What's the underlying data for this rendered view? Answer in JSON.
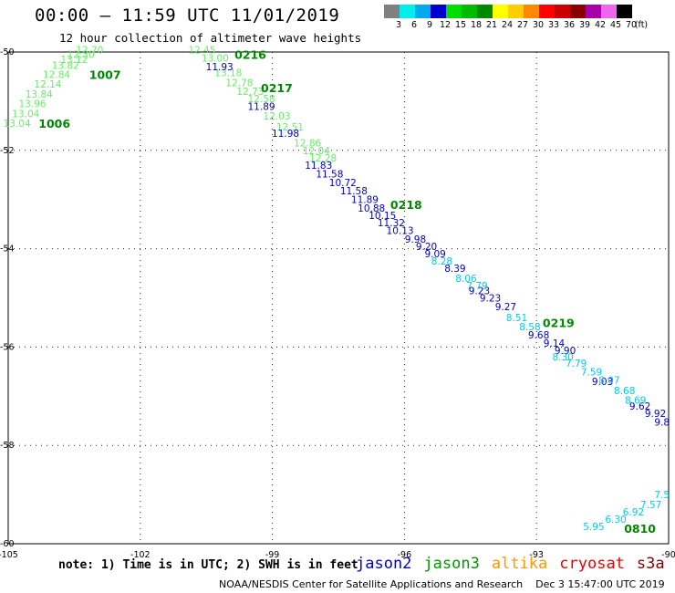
{
  "title": "00:00 – 11:59 UTC 11/01/2019",
  "subtitle": "12 hour collection of altimeter wave heights",
  "legend": {
    "labels": [
      "3",
      "6",
      "9",
      "12",
      "15",
      "18",
      "21",
      "24",
      "27",
      "30",
      "33",
      "36",
      "39",
      "42",
      "45",
      "70"
    ],
    "colors": [
      "#808080",
      "#00eeee",
      "#00aaee",
      "#0000cc",
      "#00dd00",
      "#00bb00",
      "#008800",
      "#ffff00",
      "#ffcc00",
      "#ff8800",
      "#ff0000",
      "#cc0000",
      "#880000",
      "#aa00aa",
      "#ee66ee",
      "#000000"
    ],
    "unit": "(ft)"
  },
  "colors": {
    "jason2": "#0000cc",
    "jason3": "#009900",
    "altika": "#ff9900",
    "cryosat": "#ee0000",
    "s3a": "#880000",
    "light_green": "#66ee66",
    "cyan": "#00ccee",
    "pass_label": "#008800",
    "grid": "#222222"
  },
  "map": {
    "x_ticks": [
      "-105",
      "-102",
      "-99",
      "-96",
      "-93",
      "-90"
    ],
    "y_ticks": [
      "-50",
      "-52",
      "-54",
      "-56",
      "-58",
      "-60"
    ],
    "pass_labels": [
      {
        "text": "1006",
        "lon": -103.95,
        "lat": -51.45
      },
      {
        "text": "1007",
        "lon": -102.8,
        "lat": -50.45
      },
      {
        "text": "0216",
        "lon": -99.5,
        "lat": -50.05
      },
      {
        "text": "0217",
        "lon": -98.9,
        "lat": -50.72
      },
      {
        "text": "0218",
        "lon": -95.96,
        "lat": -53.1
      },
      {
        "text": "0219",
        "lon": -92.5,
        "lat": -55.5
      },
      {
        "text": "0810",
        "lon": -90.65,
        "lat": -59.68
      }
    ],
    "tracks": [
      {
        "satellite": "jason3",
        "color_key": "light_green",
        "points": [
          {
            "v": "13.04",
            "lon": -104.8,
            "lat": -51.45
          },
          {
            "v": "13.04",
            "lon": -104.6,
            "lat": -51.25
          },
          {
            "v": "13.96",
            "lon": -104.45,
            "lat": -51.05
          },
          {
            "v": "13.84",
            "lon": -104.3,
            "lat": -50.85
          },
          {
            "v": "12.14",
            "lon": -104.1,
            "lat": -50.65
          },
          {
            "v": "12.84",
            "lon": -103.9,
            "lat": -50.45
          },
          {
            "v": "13.82",
            "lon": -103.7,
            "lat": -50.27
          },
          {
            "v": "13.12",
            "lon": -103.5,
            "lat": -50.15
          },
          {
            "v": "12.30",
            "lon": -103.35,
            "lat": -50.05
          },
          {
            "v": "12.70",
            "lon": -103.15,
            "lat": -49.95
          }
        ]
      },
      {
        "satellite": "jason3",
        "color_key": "light_green",
        "points": [
          {
            "v": "12.45",
            "lon": -100.6,
            "lat": -49.95
          },
          {
            "v": "13.00",
            "lon": -100.3,
            "lat": -50.12
          },
          {
            "v": "13.18",
            "lon": -100.0,
            "lat": -50.42
          },
          {
            "v": "12.78",
            "lon": -99.75,
            "lat": -50.62
          },
          {
            "v": "12.73",
            "lon": -99.5,
            "lat": -50.8
          },
          {
            "v": "12.58",
            "lon": -99.25,
            "lat": -50.95
          },
          {
            "v": "12.03",
            "lon": -98.9,
            "lat": -51.3
          },
          {
            "v": "12.51",
            "lon": -98.6,
            "lat": -51.52
          },
          {
            "v": "12.86",
            "lon": -98.2,
            "lat": -51.85
          },
          {
            "v": "12.04",
            "lon": -98.0,
            "lat": -52.0
          },
          {
            "v": "12.28",
            "lon": -97.85,
            "lat": -52.15
          }
        ]
      },
      {
        "satellite": "jason2",
        "color_key": "jason2",
        "points": [
          {
            "v": "11.93",
            "lon": -100.2,
            "lat": -50.3
          },
          {
            "v": "11.89",
            "lon": -99.25,
            "lat": -51.1
          },
          {
            "v": "11.98",
            "lon": -98.7,
            "lat": -51.65
          },
          {
            "v": "11.83",
            "lon": -97.95,
            "lat": -52.3
          },
          {
            "v": "11.58",
            "lon": -97.7,
            "lat": -52.48
          },
          {
            "v": "10.72",
            "lon": -97.4,
            "lat": -52.65
          },
          {
            "v": "11.58",
            "lon": -97.15,
            "lat": -52.82
          },
          {
            "v": "11.89",
            "lon": -96.9,
            "lat": -53.0
          },
          {
            "v": "10.88",
            "lon": -96.75,
            "lat": -53.17
          },
          {
            "v": "10.15",
            "lon": -96.5,
            "lat": -53.32
          },
          {
            "v": "11.32",
            "lon": -96.3,
            "lat": -53.47
          },
          {
            "v": "10.13",
            "lon": -96.1,
            "lat": -53.63
          },
          {
            "v": "9.98",
            "lon": -95.75,
            "lat": -53.8
          },
          {
            "v": "9.20",
            "lon": -95.5,
            "lat": -53.95
          },
          {
            "v": "9.09",
            "lon": -95.3,
            "lat": -54.1
          },
          {
            "v": "8.39",
            "lon": -94.85,
            "lat": -54.4
          },
          {
            "v": "9.23",
            "lon": -94.3,
            "lat": -54.85
          },
          {
            "v": "9.23",
            "lon": -94.05,
            "lat": -55.0
          },
          {
            "v": "9.27",
            "lon": -93.7,
            "lat": -55.18
          },
          {
            "v": "9.68",
            "lon": -92.95,
            "lat": -55.75
          },
          {
            "v": "9.14",
            "lon": -92.6,
            "lat": -55.92
          },
          {
            "v": "9.90",
            "lon": -92.35,
            "lat": -56.07
          },
          {
            "v": "9.03",
            "lon": -91.5,
            "lat": -56.7
          },
          {
            "v": "9.62",
            "lon": -90.65,
            "lat": -57.2
          },
          {
            "v": "9.92",
            "lon": -90.3,
            "lat": -57.35
          },
          {
            "v": "9.8",
            "lon": -90.15,
            "lat": -57.52
          }
        ]
      },
      {
        "satellite": "cyan",
        "color_key": "cyan",
        "points": [
          {
            "v": "8.28",
            "lon": -95.15,
            "lat": -54.25
          },
          {
            "v": "8.06",
            "lon": -94.6,
            "lat": -54.6
          },
          {
            "v": "7.79",
            "lon": -94.35,
            "lat": -54.75
          },
          {
            "v": "8.51",
            "lon": -93.45,
            "lat": -55.4
          },
          {
            "v": "8.58",
            "lon": -93.15,
            "lat": -55.58
          },
          {
            "v": "8.30",
            "lon": -92.4,
            "lat": -56.2
          },
          {
            "v": "7.79",
            "lon": -92.1,
            "lat": -56.33
          },
          {
            "v": "7.59",
            "lon": -91.75,
            "lat": -56.5
          },
          {
            "v": "8.07",
            "lon": -91.35,
            "lat": -56.67
          },
          {
            "v": "8.68",
            "lon": -91.0,
            "lat": -56.88
          },
          {
            "v": "8.69",
            "lon": -90.75,
            "lat": -57.08
          },
          {
            "v": "5.95",
            "lon": -91.7,
            "lat": -59.65
          },
          {
            "v": "6.30",
            "lon": -91.2,
            "lat": -59.5
          },
          {
            "v": "6.92",
            "lon": -90.8,
            "lat": -59.35
          },
          {
            "v": "7.57",
            "lon": -90.4,
            "lat": -59.2
          },
          {
            "v": "7.5",
            "lon": -90.15,
            "lat": -59.0
          }
        ]
      }
    ]
  },
  "note": "note: 1) Time is in UTC; 2) SWH is in feet",
  "satellites": [
    "jason2",
    "jason3",
    "altika",
    "cryosat",
    "s3a"
  ],
  "credit": "NOAA/NESDIS Center for Satellite Applications and Research",
  "timestamp": "Dec  3 15:47:00 UTC 2019"
}
